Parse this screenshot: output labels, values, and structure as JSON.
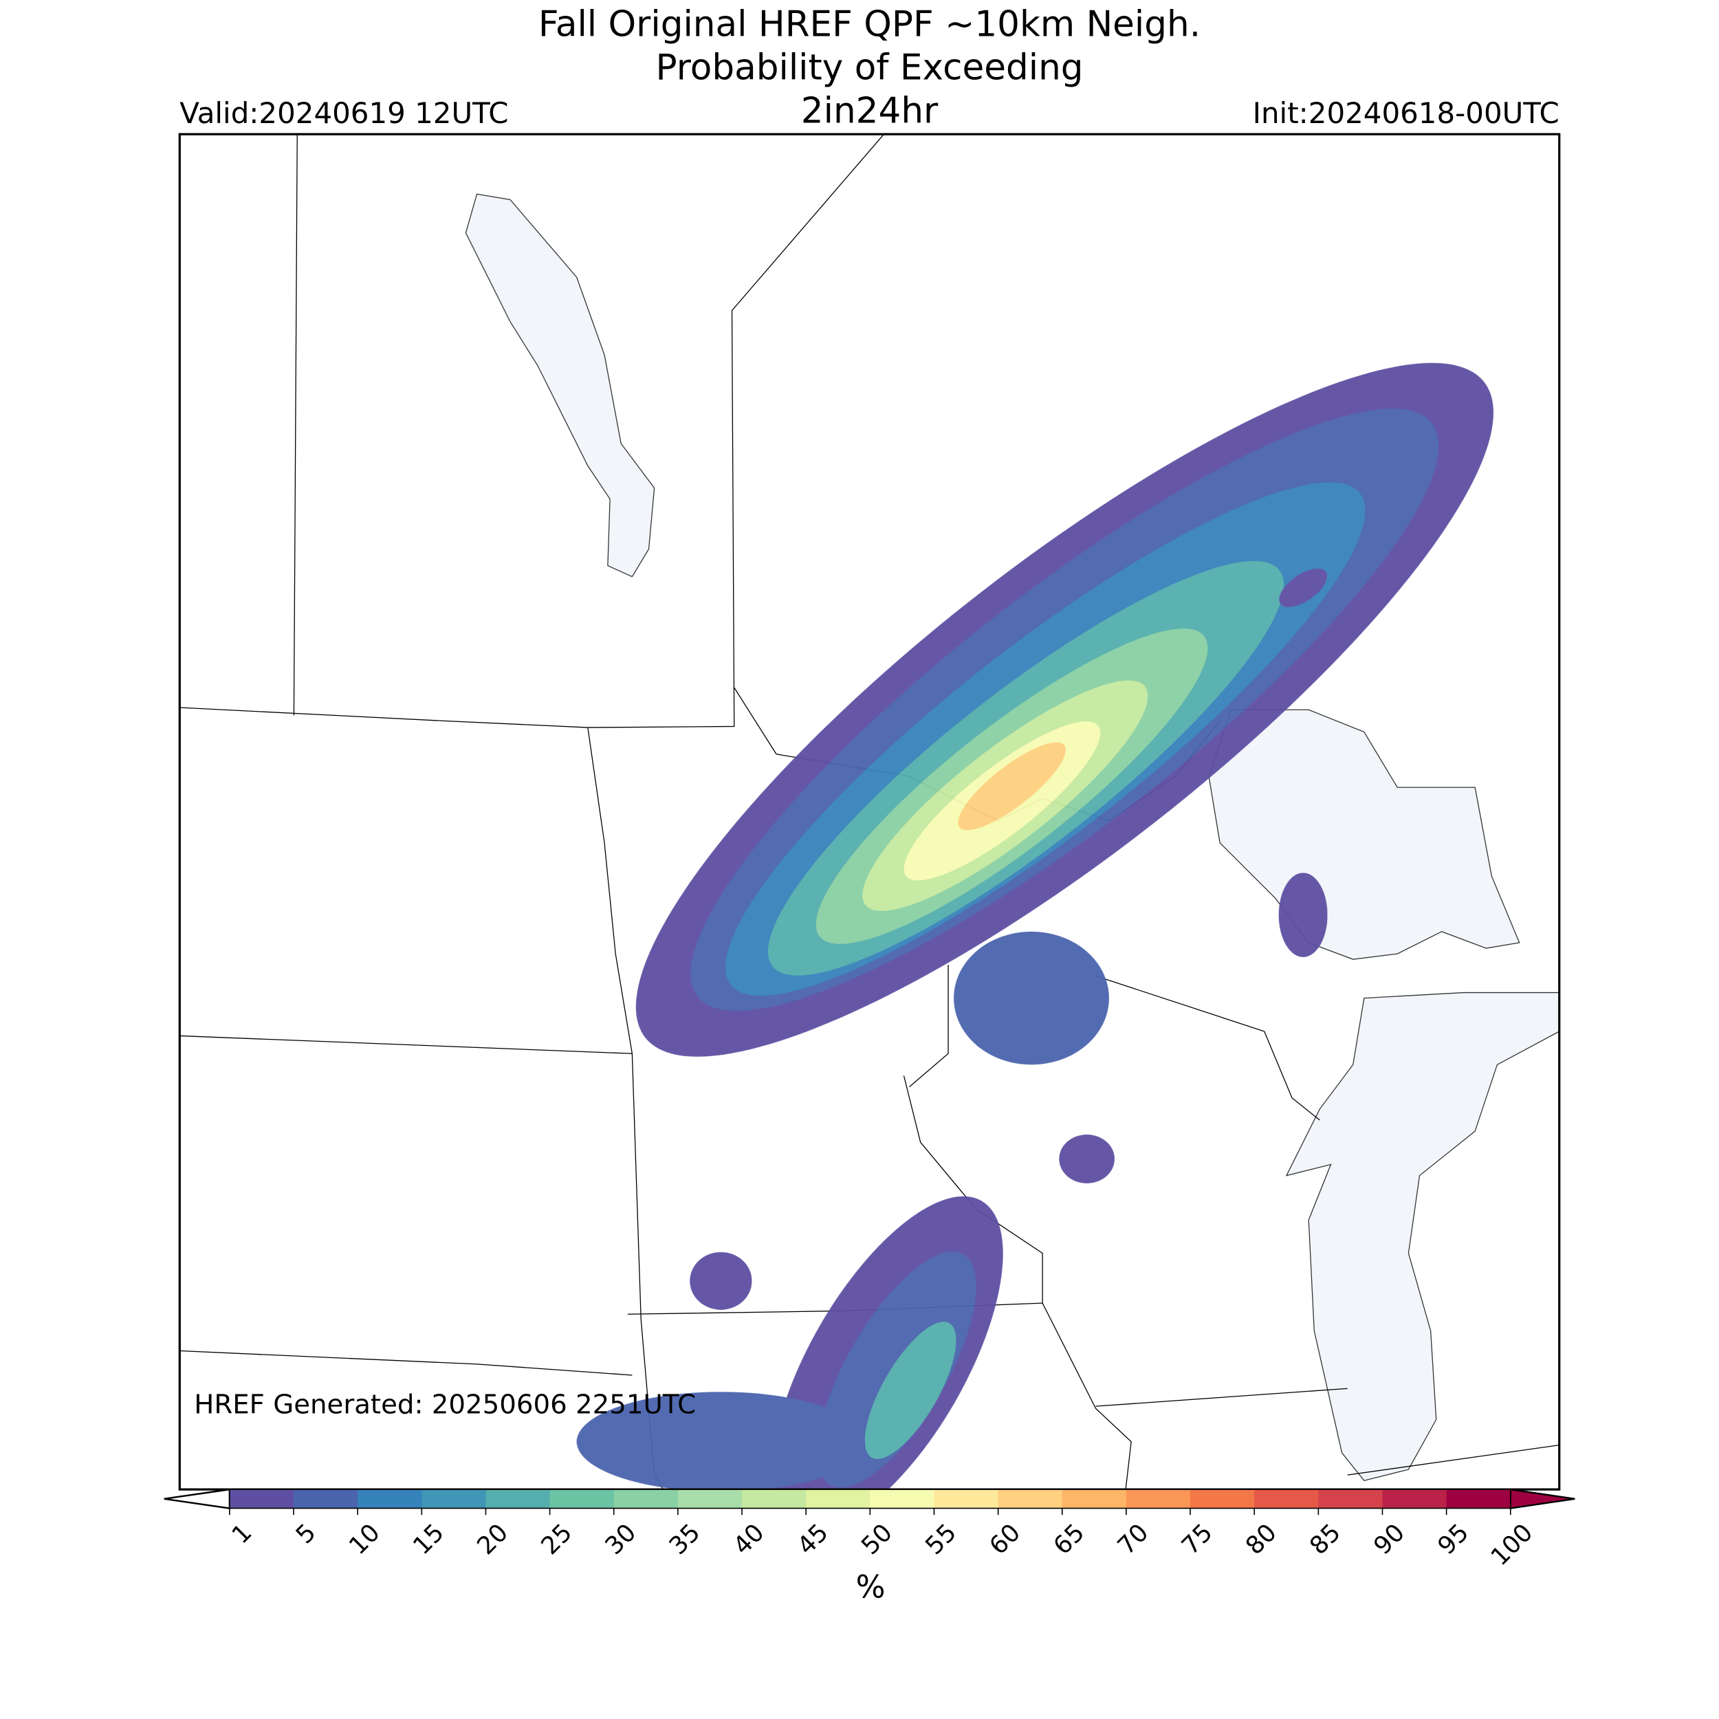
{
  "header": {
    "title_lines": [
      "Fall Original HREF QPF ~10km Neigh.",
      "Probability of Exceeding"
    ],
    "threshold": "2in24hr",
    "valid": "Valid:20240619 12UTC",
    "init": "Init:20240618-00UTC"
  },
  "footer": {
    "generated": "HREF Generated: 20250606 2251UTC"
  },
  "colorbar": {
    "label": "%",
    "ticks": [
      1,
      5,
      10,
      15,
      20,
      25,
      30,
      35,
      40,
      45,
      50,
      55,
      60,
      65,
      70,
      75,
      80,
      85,
      90,
      95,
      100
    ],
    "colors": [
      "#5e4fa2",
      "#4a64ad",
      "#3682ba",
      "#3f96b7",
      "#54aead",
      "#6bc4a4",
      "#89d0a4",
      "#a8ddaa",
      "#c5e9a0",
      "#e1f3a0",
      "#f6fbb2",
      "#fee99a",
      "#fed07f",
      "#fdb567",
      "#fa9656",
      "#f47747",
      "#e65948",
      "#d6424b",
      "#bb2249",
      "#9e0142"
    ],
    "under_color": "#ffffff",
    "over_color": "#9e0142"
  }
}
